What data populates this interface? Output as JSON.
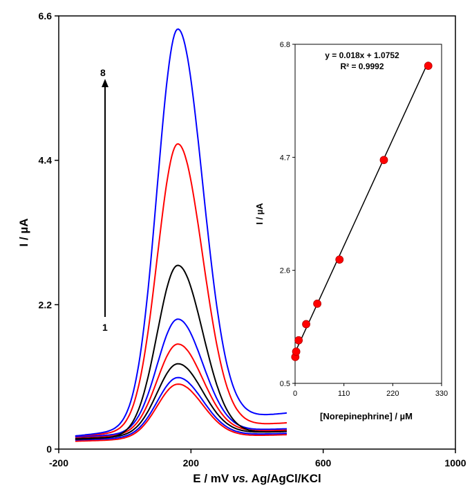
{
  "chart_data": [
    {
      "type": "line",
      "title": "",
      "xlabel_parts": [
        "E / mV ",
        "vs.",
        " Ag/AgCl/KCl"
      ],
      "ylabel": "I / µA",
      "xlim": [
        -200,
        1000
      ],
      "ylim": [
        0,
        6.6
      ],
      "x_ticks": [
        "-200",
        "200",
        "600",
        "1000"
      ],
      "y_ticks": [
        "0",
        "2.2",
        "4.4",
        "6.6"
      ],
      "x_range": [
        -150,
        490
      ],
      "peak_potential": 160,
      "arrow_start_label": "1",
      "arrow_end_label": "8",
      "series": [
        {
          "color": "#ff0000",
          "baseline_start": 0.12,
          "baseline_end": 0.22,
          "peak": 0.99
        },
        {
          "color": "#0000ff",
          "baseline_start": 0.14,
          "baseline_end": 0.24,
          "peak": 1.09
        },
        {
          "color": "#000000",
          "baseline_start": 0.16,
          "baseline_end": 0.27,
          "peak": 1.3
        },
        {
          "color": "#ff0000",
          "baseline_start": 0.18,
          "baseline_end": 0.29,
          "peak": 1.6
        },
        {
          "color": "#0000ff",
          "baseline_start": 0.19,
          "baseline_end": 0.31,
          "peak": 1.98
        },
        {
          "color": "#000000",
          "baseline_start": 0.15,
          "baseline_end": 0.27,
          "peak": 2.8
        },
        {
          "color": "#ff0000",
          "baseline_start": 0.2,
          "baseline_end": 0.4,
          "peak": 4.65
        },
        {
          "color": "#0000ff",
          "baseline_start": 0.2,
          "baseline_end": 0.55,
          "peak": 6.4
        }
      ]
    },
    {
      "type": "scatter",
      "title": "",
      "xlabel": "[Norepinephrine] / µM",
      "ylabel": "I / µA",
      "xlim": [
        0,
        330
      ],
      "ylim": [
        0.5,
        6.8
      ],
      "x_ticks": [
        "0",
        "110",
        "220",
        "330"
      ],
      "y_ticks": [
        "0.5",
        "2.6",
        "4.7",
        "6.8"
      ],
      "points": {
        "x": [
          0.5,
          2.5,
          8,
          25,
          50,
          100,
          200,
          300
        ],
        "y": [
          0.99,
          1.09,
          1.3,
          1.6,
          1.98,
          2.8,
          4.65,
          6.4
        ]
      },
      "fit": {
        "slope": 0.018,
        "intercept": 1.0752,
        "x_range": [
          0,
          300
        ]
      },
      "equation": "y = 0.018x + 1.0752",
      "r_squared": "R² = 0.9992",
      "point_color": "#ff0000",
      "fit_color": "#000000"
    }
  ]
}
